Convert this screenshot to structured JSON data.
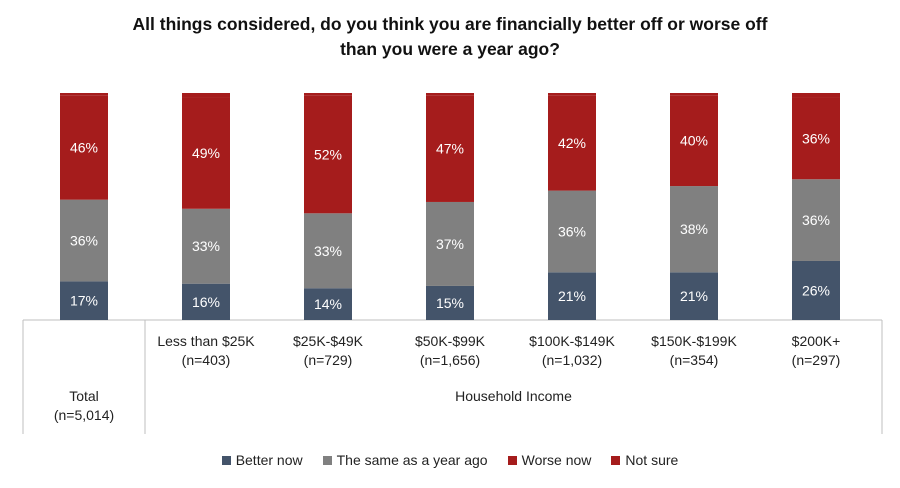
{
  "chart_data": {
    "type": "bar",
    "stacked": true,
    "title": "All things considered, do you think you are financially better off or worse off than you were a year ago?",
    "title_lines": [
      "All things considered, do you think you are financially better off or worse off",
      "than you were a year ago?"
    ],
    "categories": [
      {
        "label": "",
        "n": "",
        "group": "Total"
      },
      {
        "label": "Less than $25K",
        "n": "(n=403)",
        "group": "Household Income"
      },
      {
        "label": "$25K-$49K",
        "n": "(n=729)",
        "group": "Household Income"
      },
      {
        "label": "$50K-$99K",
        "n": "(n=1,656)",
        "group": "Household Income"
      },
      {
        "label": "$100K-$149K",
        "n": "(n=1,032)",
        "group": "Household Income"
      },
      {
        "label": "$150K-$199K",
        "n": "(n=354)",
        "group": "Household Income"
      },
      {
        "label": "$200K+",
        "n": "(n=297)",
        "group": "Household Income"
      }
    ],
    "total_label": {
      "label": "Total",
      "n": "(n=5,014)"
    },
    "group_label": "Household Income",
    "series": [
      {
        "name": "Better now",
        "color": "#44546A",
        "values": [
          17,
          16,
          14,
          15,
          21,
          21,
          26
        ]
      },
      {
        "name": "The same as a year ago",
        "color": "#808080",
        "values": [
          36,
          33,
          33,
          37,
          36,
          38,
          36
        ]
      },
      {
        "name": "Worse now",
        "color": "#A51C1C",
        "values": [
          46,
          49,
          52,
          47,
          42,
          40,
          36
        ]
      },
      {
        "name": "Not sure",
        "color": "#A51C1C",
        "values": [
          1,
          2,
          1,
          1,
          1,
          1,
          2
        ]
      }
    ],
    "ylim": [
      0,
      100
    ],
    "value_suffix": "%"
  }
}
